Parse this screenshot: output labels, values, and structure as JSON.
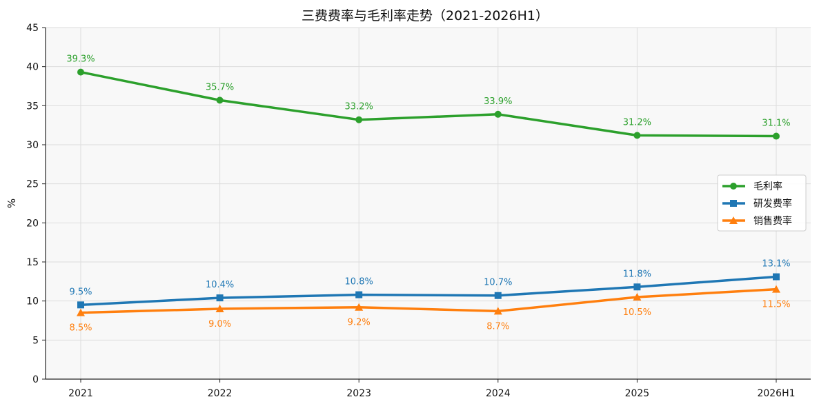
{
  "chart_data": {
    "type": "line",
    "title": "三费费率与毛利率走势（2021-2026H1）",
    "xlabel": "",
    "ylabel": "%",
    "categories": [
      "2021",
      "2022",
      "2023",
      "2024",
      "2025",
      "2026H1"
    ],
    "ylim": [
      0,
      45
    ],
    "yticks": [
      0,
      5,
      10,
      15,
      20,
      25,
      30,
      35,
      40,
      45
    ],
    "grid": true,
    "legend_position": "right",
    "series": [
      {
        "name": "毛利率",
        "marker": "circle",
        "color": "#2ca02c",
        "values": [
          39.3,
          35.7,
          33.2,
          33.9,
          31.2,
          31.1
        ],
        "labels": [
          "39.3%",
          "35.7%",
          "33.2%",
          "33.9%",
          "31.2%",
          "31.1%"
        ],
        "label_position": "above"
      },
      {
        "name": "研发费率",
        "marker": "square",
        "color": "#1f77b4",
        "values": [
          9.5,
          10.4,
          10.8,
          10.7,
          11.8,
          13.1
        ],
        "labels": [
          "9.5%",
          "10.4%",
          "10.8%",
          "10.7%",
          "11.8%",
          "13.1%"
        ],
        "label_position": "above"
      },
      {
        "name": "销售费率",
        "marker": "triangle",
        "color": "#ff7f0e",
        "values": [
          8.5,
          9.0,
          9.2,
          8.7,
          10.5,
          11.5
        ],
        "labels": [
          "8.5%",
          "9.0%",
          "9.2%",
          "8.7%",
          "10.5%",
          "11.5%"
        ],
        "label_position": "below"
      }
    ]
  }
}
